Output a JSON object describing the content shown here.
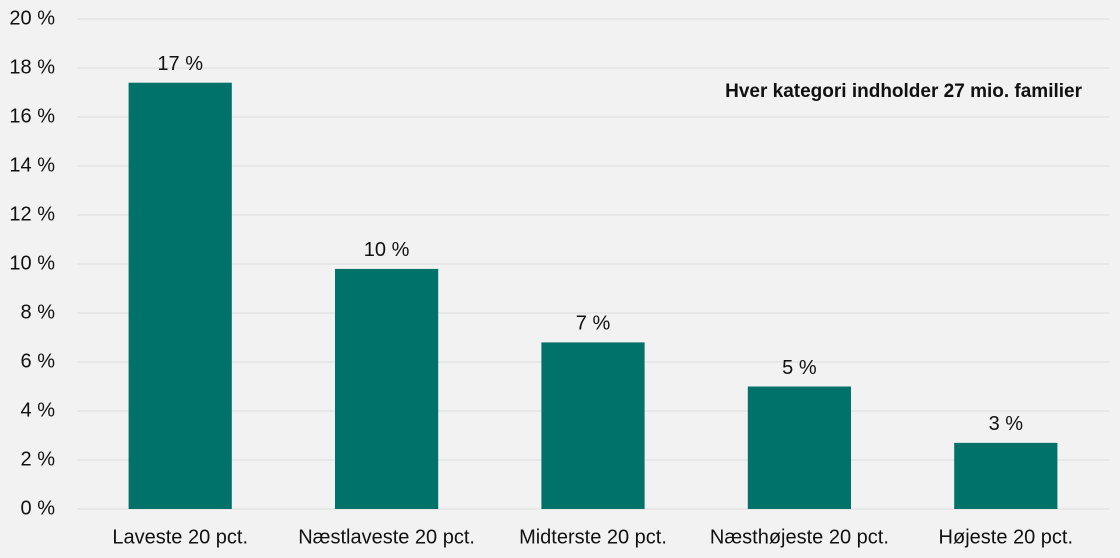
{
  "chart_data": {
    "type": "bar",
    "annotation": "Hver kategori indholder 27 mio. familier",
    "categories": [
      "Laveste 20 pct.",
      "Næstlaveste 20 pct.",
      "Midterste 20 pct.",
      "Næsthøjeste 20 pct.",
      "Højeste 20 pct."
    ],
    "values": [
      17.4,
      9.8,
      6.8,
      5.0,
      2.7
    ],
    "value_labels": [
      "17 %",
      "10 %",
      "7 %",
      "5 %",
      "3 %"
    ],
    "color": "#00726a",
    "ylim": [
      0,
      20
    ],
    "yticks": [
      {
        "value": 0,
        "label": "0 %"
      },
      {
        "value": 2,
        "label": "2 %"
      },
      {
        "value": 4,
        "label": "4 %"
      },
      {
        "value": 6,
        "label": "6 %"
      },
      {
        "value": 8,
        "label": "8 %"
      },
      {
        "value": 10,
        "label": "10 %"
      },
      {
        "value": 12,
        "label": "12 %"
      },
      {
        "value": 14,
        "label": "14 %"
      },
      {
        "value": 16,
        "label": "16 %"
      },
      {
        "value": 18,
        "label": "18 %"
      },
      {
        "value": 20,
        "label": "20 %"
      }
    ],
    "grid": true
  }
}
